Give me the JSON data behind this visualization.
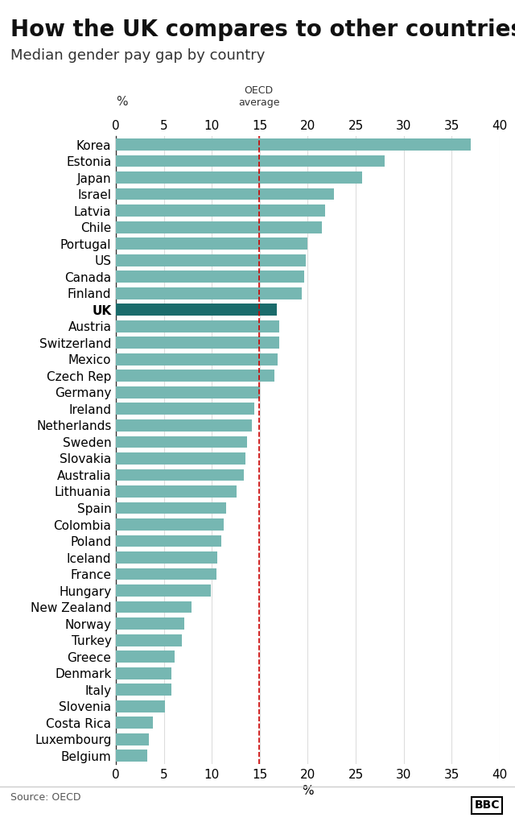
{
  "title": "How the UK compares to other countries",
  "subtitle": "Median gender pay gap by country",
  "source": "Source: OECD",
  "countries": [
    "Korea",
    "Estonia",
    "Japan",
    "Israel",
    "Latvia",
    "Chile",
    "Portugal",
    "US",
    "Canada",
    "Finland",
    "UK",
    "Austria",
    "Switzerland",
    "Mexico",
    "Czech Rep",
    "Germany",
    "Ireland",
    "Netherlands",
    "Sweden",
    "Slovakia",
    "Australia",
    "Lithuania",
    "Spain",
    "Colombia",
    "Poland",
    "Iceland",
    "France",
    "Hungary",
    "New Zealand",
    "Norway",
    "Turkey",
    "Greece",
    "Denmark",
    "Italy",
    "Slovenia",
    "Costa Rica",
    "Luxembourg",
    "Belgium"
  ],
  "values": [
    37.0,
    28.0,
    25.7,
    22.7,
    21.8,
    21.5,
    20.0,
    19.8,
    19.6,
    19.4,
    16.8,
    17.0,
    17.0,
    16.9,
    16.5,
    15.0,
    14.4,
    14.2,
    13.7,
    13.5,
    13.3,
    12.6,
    11.5,
    11.2,
    11.0,
    10.6,
    10.5,
    9.9,
    7.9,
    7.1,
    6.9,
    6.1,
    5.8,
    5.8,
    5.1,
    3.9,
    3.4,
    3.3
  ],
  "bar_color_default": "#76B7B2",
  "bar_color_uk": "#1a6b6b",
  "oecd_average": 14.9,
  "xlim": [
    0,
    40
  ],
  "xticks": [
    0,
    5,
    10,
    15,
    20,
    25,
    30,
    35,
    40
  ],
  "background_color": "#ffffff",
  "title_fontsize": 20,
  "subtitle_fontsize": 13,
  "tick_fontsize": 11,
  "label_fontsize": 11
}
